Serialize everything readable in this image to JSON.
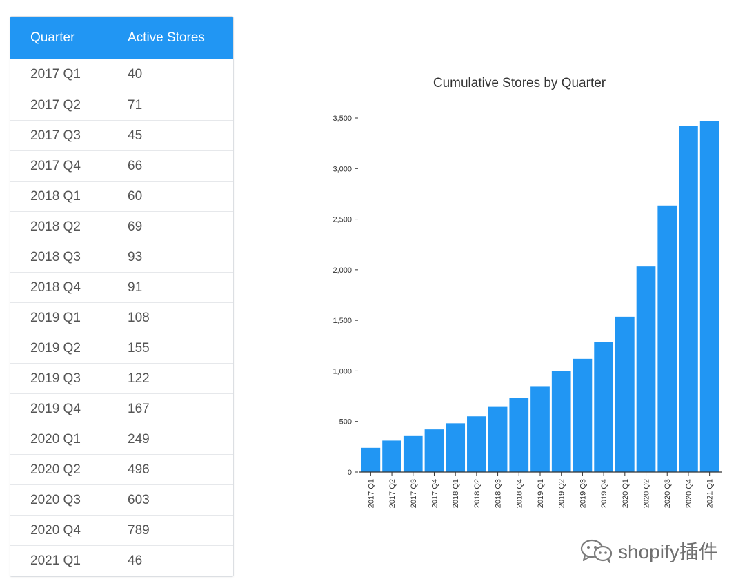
{
  "table": {
    "headers": [
      "Quarter",
      "Active Stores"
    ],
    "rows": [
      [
        "2017 Q1",
        "40"
      ],
      [
        "2017 Q2",
        "71"
      ],
      [
        "2017 Q3",
        "45"
      ],
      [
        "2017 Q4",
        "66"
      ],
      [
        "2018 Q1",
        "60"
      ],
      [
        "2018 Q2",
        "69"
      ],
      [
        "2018 Q3",
        "93"
      ],
      [
        "2018 Q4",
        "91"
      ],
      [
        "2019 Q1",
        "108"
      ],
      [
        "2019 Q2",
        "155"
      ],
      [
        "2019 Q3",
        "122"
      ],
      [
        "2019 Q4",
        "167"
      ],
      [
        "2020 Q1",
        "249"
      ],
      [
        "2020 Q2",
        "496"
      ],
      [
        "2020 Q3",
        "603"
      ],
      [
        "2020 Q4",
        "789"
      ],
      [
        "2021 Q1",
        "46"
      ]
    ]
  },
  "chart_data": {
    "type": "bar",
    "title": "Cumulative Stores by Quarter",
    "xlabel": "",
    "ylabel": "",
    "categories": [
      "2017 Q1",
      "2017 Q2",
      "2017 Q3",
      "2017 Q4",
      "2018 Q1",
      "2018 Q2",
      "2018 Q3",
      "2018 Q4",
      "2019 Q1",
      "2019 Q2",
      "2019 Q3",
      "2019 Q4",
      "2020 Q1",
      "2020 Q2",
      "2020 Q3",
      "2020 Q4",
      "2021 Q1"
    ],
    "values": [
      240,
      311,
      356,
      422,
      482,
      551,
      644,
      735,
      843,
      998,
      1120,
      1287,
      1536,
      2032,
      2635,
      3424,
      3470
    ],
    "yticks": [
      0,
      500,
      1000,
      1500,
      2000,
      2500,
      3000,
      3500
    ],
    "ytick_labels": [
      "0",
      "500",
      "1,000",
      "1,500",
      "2,000",
      "2,500",
      "3,000",
      "3,500"
    ],
    "ylim": [
      0,
      3500
    ],
    "grid": false,
    "bar_color": "#2196f3"
  },
  "watermark": {
    "text": "shopify插件",
    "icon": "wechat-icon"
  }
}
